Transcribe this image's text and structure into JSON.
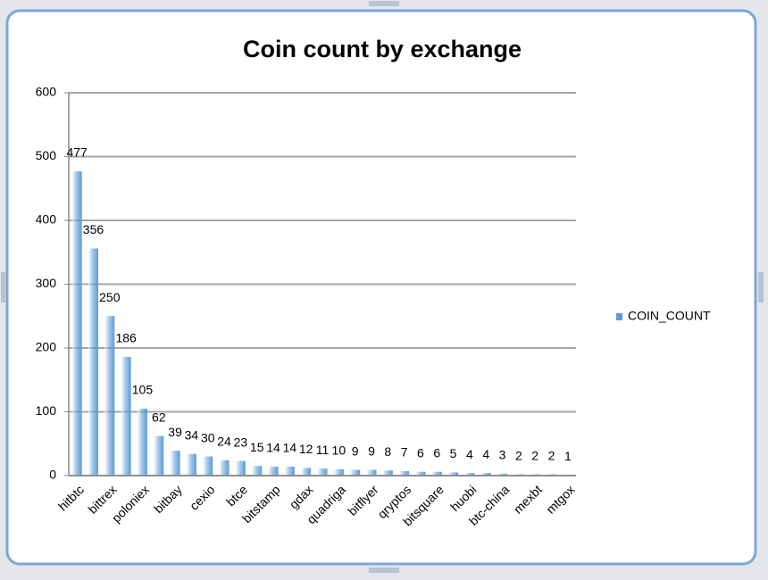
{
  "chart_data": {
    "type": "bar",
    "title": "Coin count by exchange",
    "categories": [
      "hitbtc",
      null,
      "bittrex",
      null,
      "poloniex",
      null,
      "bitbay",
      null,
      "cexio",
      null,
      "btce",
      null,
      "bitstamp",
      null,
      "gdax",
      null,
      "quadriga",
      null,
      "bitflyer",
      null,
      "qryptos",
      null,
      "bitsquare",
      null,
      "huobi",
      null,
      "btc-china",
      null,
      "mexbt",
      null,
      "mtgox"
    ],
    "series": [
      {
        "name": "COIN_COUNT",
        "color": "#5b9bd5",
        "values": [
          477,
          356,
          250,
          186,
          105,
          62,
          39,
          34,
          30,
          24,
          23,
          15,
          14,
          14,
          12,
          11,
          10,
          9,
          9,
          8,
          7,
          6,
          6,
          5,
          4,
          4,
          3,
          2,
          2,
          2,
          1
        ]
      }
    ],
    "ylim": [
      0,
      600
    ],
    "yticks": [
      0,
      100,
      200,
      300,
      400,
      500,
      600
    ],
    "grid": true,
    "legend": "right"
  }
}
